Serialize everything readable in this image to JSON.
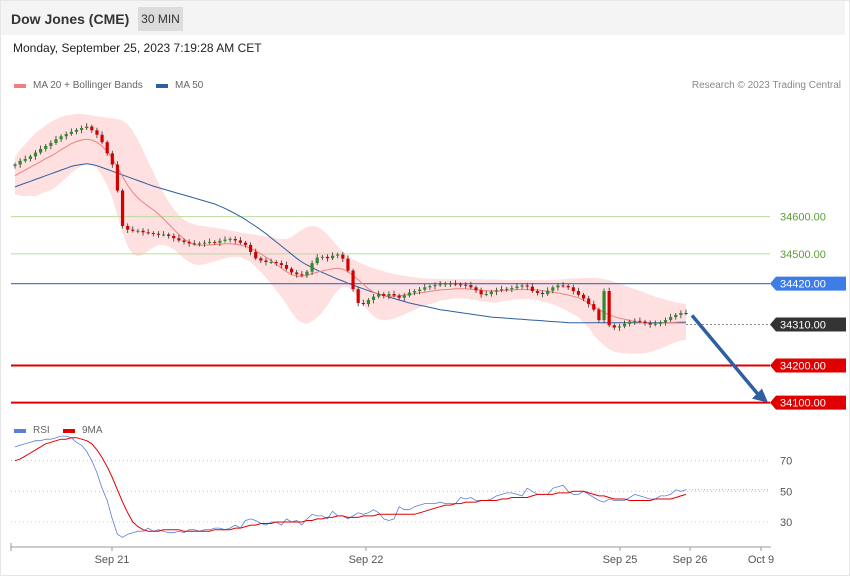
{
  "header": {
    "title": "Dow Jones (CME)",
    "timeframe": "30 MIN",
    "datetime": "Monday, September 25, 2023 7:19:28 AM CET",
    "credit": "Research © 2023 Trading Central"
  },
  "legend_price": [
    {
      "label": "MA 20 + Bollinger Bands",
      "color": "#f08080"
    },
    {
      "label": "MA 50",
      "color": "#2f5f9f"
    }
  ],
  "legend_rsi": [
    {
      "label": "RSI",
      "color": "#5b7fd6"
    },
    {
      "label": "9MA",
      "color": "#e00000"
    }
  ],
  "chart_data": [
    {
      "type": "line",
      "panel": "price",
      "x_tick_labels": [
        "Sep 21",
        "Sep 22",
        "Sep 25",
        "Sep 26",
        "Oct 9"
      ],
      "ylim": [
        34040,
        34900
      ],
      "levels": [
        {
          "value": 34600,
          "label": "34600.00",
          "role": "resistance",
          "color": "#b8dca0",
          "text_color": "#5a9e32"
        },
        {
          "value": 34500,
          "label": "34500.00",
          "role": "resistance",
          "color": "#b8dca0",
          "text_color": "#5a9e32"
        },
        {
          "value": 34420,
          "label": "34420.00",
          "role": "pivot",
          "color": "#3d7de8",
          "text_color": "#ffffff"
        },
        {
          "value": 34310,
          "label": "34310.00",
          "role": "last",
          "color": "#333333",
          "text_color": "#ffffff"
        },
        {
          "value": 34200,
          "label": "34200.00",
          "role": "support",
          "color": "#e00000",
          "text_color": "#ffffff"
        },
        {
          "value": 34100,
          "label": "34100.00",
          "role": "support",
          "color": "#e00000",
          "text_color": "#ffffff"
        }
      ],
      "close": [
        34740,
        34750,
        34755,
        34762,
        34772,
        34782,
        34790,
        34798,
        34808,
        34816,
        34822,
        34828,
        34833,
        34838,
        34842,
        34832,
        34820,
        34800,
        34770,
        34740,
        34670,
        34575,
        34565,
        34562,
        34562,
        34558,
        34556,
        34554,
        34552,
        34552,
        34548,
        34542,
        34536,
        34532,
        34528,
        34527,
        34528,
        34530,
        34532,
        34530,
        34535,
        34538,
        34540,
        34536,
        34530,
        34524,
        34505,
        34488,
        34482,
        34478,
        34478,
        34475,
        34470,
        34460,
        34450,
        34445,
        34442,
        34452,
        34475,
        34490,
        34492,
        34488,
        34495,
        34498,
        34487,
        34455,
        34405,
        34368,
        34365,
        34376,
        34385,
        34392,
        34387,
        34392,
        34388,
        34382,
        34388,
        34396,
        34400,
        34404,
        34410,
        34413,
        34416,
        34418,
        34420,
        34420,
        34418,
        34417,
        34416,
        34410,
        34402,
        34391,
        34392,
        34398,
        34402,
        34405,
        34406,
        34408,
        34412,
        34415,
        34412,
        34400,
        34395,
        34392,
        34401,
        34410,
        34415,
        34414,
        34410,
        34400,
        34390,
        34380,
        34365,
        34350,
        34322,
        34400,
        34308,
        34302,
        34305,
        34312,
        34318,
        34320,
        34318,
        34314,
        34310,
        34312,
        34316,
        34322,
        34330,
        34336,
        34341,
        34340
      ],
      "ma20": [
        34710,
        34718,
        34725,
        34733,
        34740,
        34748,
        34756,
        34763,
        34771,
        34780,
        34788,
        34796,
        34802,
        34806,
        34808,
        34806,
        34800,
        34789,
        34775,
        34757,
        34733,
        34707,
        34684,
        34665,
        34650,
        34638,
        34628,
        34618,
        34607,
        34594,
        34580,
        34566,
        34552,
        34540,
        34531,
        34525,
        34523,
        34523,
        34524,
        34525,
        34526,
        34527,
        34527,
        34526,
        34524,
        34520,
        34515,
        34508,
        34500,
        34491,
        34482,
        34472,
        34462,
        34452,
        34444,
        34440,
        34440,
        34442,
        34447,
        34451,
        34454,
        34457,
        34460,
        34461,
        34459,
        34452,
        34442,
        34430,
        34418,
        34406,
        34397,
        34391,
        34387,
        34386,
        34386,
        34387,
        34389,
        34391,
        34393,
        34395,
        34397,
        34399,
        34401,
        34403,
        34404,
        34405,
        34406,
        34406,
        34406,
        34405,
        34404,
        34402,
        34401,
        34400,
        34400,
        34401,
        34402,
        34403,
        34404,
        34404,
        34404,
        34404,
        34403,
        34401,
        34399,
        34397,
        34395,
        34392,
        34389,
        34386,
        34382,
        34375,
        34368,
        34358,
        34350,
        34343,
        34336,
        34331,
        34327,
        34324,
        34321,
        34318,
        34316,
        34314,
        34313,
        34313,
        34313,
        34314,
        34315,
        34316,
        34317,
        34317
      ],
      "bb_upper": [
        34760,
        34780,
        34795,
        34810,
        34825,
        34835,
        34845,
        34855,
        34862,
        34868,
        34872,
        34874,
        34876,
        34876,
        34874,
        34872,
        34870,
        34868,
        34866,
        34864,
        34862,
        34858,
        34848,
        34830,
        34806,
        34778,
        34748,
        34719,
        34690,
        34664,
        34640,
        34620,
        34604,
        34592,
        34584,
        34579,
        34576,
        34574,
        34572,
        34570,
        34568,
        34566,
        34563,
        34560,
        34557,
        34555,
        34553,
        34551,
        34549,
        34547,
        34545,
        34542,
        34540,
        34540,
        34545,
        34555,
        34565,
        34572,
        34575,
        34573,
        34565,
        34552,
        34536,
        34520,
        34506,
        34494,
        34485,
        34478,
        34472,
        34466,
        34461,
        34457,
        34453,
        34449,
        34446,
        34443,
        34441,
        34439,
        34437,
        34435,
        34434,
        34433,
        34433,
        34432,
        34432,
        34432,
        34432,
        34432,
        34432,
        34432,
        34432,
        34432,
        34431,
        34431,
        34431,
        34430,
        34430,
        34430,
        34430,
        34430,
        34430,
        34430,
        34430,
        34430,
        34430,
        34430,
        34431,
        34432,
        34433,
        34434,
        34434,
        34435,
        34435,
        34435,
        34434,
        34432,
        34429,
        34425,
        34420,
        34415,
        34410,
        34405,
        34400,
        34395,
        34390,
        34385,
        34381,
        34377,
        34373,
        34370,
        34367,
        34365
      ],
      "bb_lower": [
        34660,
        34656,
        34655,
        34656,
        34655,
        34661,
        34667,
        34671,
        34680,
        34692,
        34704,
        34718,
        34728,
        34736,
        34742,
        34740,
        34730,
        34710,
        34684,
        34650,
        34604,
        34556,
        34520,
        34500,
        34494,
        34498,
        34508,
        34517,
        34524,
        34524,
        34520,
        34512,
        34500,
        34488,
        34478,
        34471,
        34470,
        34472,
        34476,
        34480,
        34484,
        34488,
        34491,
        34492,
        34491,
        34485,
        34477,
        34465,
        34451,
        34435,
        34419,
        34402,
        34384,
        34364,
        34343,
        34325,
        34315,
        34312,
        34319,
        34329,
        34343,
        34362,
        34384,
        34402,
        34412,
        34410,
        34399,
        34382,
        34364,
        34346,
        34333,
        34325,
        34321,
        34323,
        34326,
        34331,
        34337,
        34343,
        34349,
        34355,
        34360,
        34365,
        34369,
        34374,
        34376,
        34378,
        34380,
        34380,
        34380,
        34378,
        34376,
        34372,
        34371,
        34369,
        34369,
        34372,
        34374,
        34376,
        34378,
        34378,
        34378,
        34378,
        34376,
        34372,
        34368,
        34364,
        34359,
        34352,
        34345,
        34338,
        34330,
        34315,
        34301,
        34281,
        34266,
        34254,
        34243,
        34237,
        34234,
        34233,
        34232,
        34231,
        34232,
        34233,
        34236,
        34241,
        34245,
        34251,
        34257,
        34262,
        34267,
        34269
      ],
      "ma50": [
        34680,
        34685,
        34690,
        34695,
        34700,
        34705,
        34710,
        34715,
        34720,
        34725,
        34730,
        34735,
        34738,
        34740,
        34742,
        34740,
        34737,
        34732,
        34727,
        34722,
        34717,
        34712,
        34707,
        34702,
        34697,
        34692,
        34687,
        34682,
        34678,
        34674,
        34670,
        34666,
        34662,
        34658,
        34654,
        34650,
        34646,
        34642,
        34638,
        34634,
        34628,
        34622,
        34615,
        34608,
        34600,
        34592,
        34583,
        34574,
        34564,
        34554,
        34543,
        34532,
        34521,
        34510,
        34499,
        34488,
        34478,
        34470,
        34463,
        34456,
        34450,
        34444,
        34438,
        34432,
        34427,
        34421,
        34416,
        34411,
        34406,
        34401,
        34396,
        34392,
        34388,
        34384,
        34380,
        34376,
        34372,
        34368,
        34365,
        34362,
        34359,
        34356,
        34353,
        34350,
        34348,
        34346,
        34344,
        34342,
        34340,
        34338,
        34336,
        34334,
        34332,
        34330,
        34329,
        34328,
        34327,
        34326,
        34325,
        34324,
        34323,
        34322,
        34321,
        34320,
        34319,
        34318,
        34317,
        34316,
        34315,
        34315,
        34315,
        34315,
        34315,
        34315,
        34315,
        34315,
        34315,
        34315,
        34315,
        34315,
        34315,
        34315,
        34315,
        34315,
        34315,
        34315,
        34315,
        34315,
        34315,
        34315,
        34315,
        34315
      ]
    },
    {
      "type": "line",
      "panel": "rsi",
      "ylim": [
        15,
        90
      ],
      "y_tick_labels": [
        "70",
        "50",
        "30"
      ],
      "levels": [
        70,
        50,
        30
      ],
      "rsi": [
        79,
        80,
        81,
        82,
        83,
        83,
        84,
        84,
        85,
        86,
        86,
        85,
        82,
        80,
        76,
        70,
        62,
        52,
        44,
        32,
        22,
        20,
        22,
        23,
        24,
        24,
        26,
        24,
        25,
        24,
        23,
        23,
        24,
        23,
        25,
        25,
        24,
        25,
        25,
        26,
        26,
        25,
        26,
        28,
        26,
        31,
        32,
        31,
        29,
        28,
        30,
        30,
        28,
        32,
        30,
        31,
        28,
        32,
        35,
        34,
        34,
        32,
        37,
        34,
        34,
        32,
        34,
        36,
        35,
        36,
        38,
        36,
        32,
        31,
        32,
        40,
        38,
        38,
        40,
        41,
        42,
        42,
        42,
        43,
        42,
        42,
        42,
        46,
        45,
        46,
        44,
        44,
        44,
        45,
        47,
        48,
        49,
        49,
        48,
        47,
        52,
        50,
        48,
        48,
        48,
        52,
        53,
        54,
        50,
        48,
        48,
        50,
        48,
        46,
        44,
        43,
        45,
        44,
        44,
        44,
        46,
        48,
        47,
        46,
        45,
        45,
        47,
        47,
        48,
        51,
        50,
        51
      ],
      "ma9": [
        70,
        71,
        73,
        75,
        77,
        79,
        81,
        82,
        83,
        84,
        84,
        85,
        85,
        84,
        83,
        81,
        77,
        72,
        66,
        59,
        51,
        43,
        36,
        30,
        27,
        25,
        24,
        24,
        24,
        25,
        25,
        25,
        25,
        24,
        24,
        24,
        24,
        24,
        24,
        25,
        25,
        25,
        25,
        26,
        26,
        27,
        28,
        28,
        29,
        29,
        29,
        30,
        30,
        30,
        30,
        30,
        30,
        31,
        31,
        32,
        32,
        33,
        33,
        34,
        34,
        33,
        33,
        33,
        34,
        34,
        34,
        35,
        35,
        35,
        35,
        35,
        35,
        35,
        35,
        36,
        37,
        38,
        39,
        40,
        41,
        41,
        42,
        42,
        43,
        43,
        43,
        44,
        44,
        44,
        44,
        45,
        45,
        46,
        46,
        46,
        46,
        47,
        48,
        48,
        48,
        48,
        49,
        49,
        49,
        50,
        50,
        50,
        49,
        48,
        47,
        47,
        46,
        45,
        45,
        45,
        44,
        44,
        44,
        44,
        44,
        45,
        45,
        45,
        45,
        46,
        47,
        48
      ]
    }
  ]
}
